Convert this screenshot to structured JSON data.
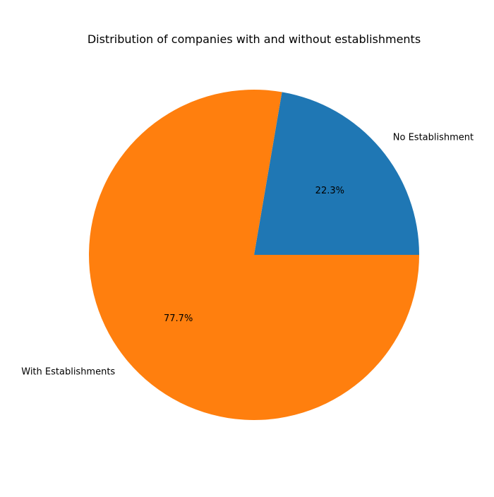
{
  "chart_data": {
    "type": "pie",
    "title": "Distribution of companies with and without establishments",
    "categories": [
      "No Establishment",
      "With Establishments"
    ],
    "values": [
      22.3,
      77.7
    ],
    "percent_labels": [
      "22.3%",
      "77.7%"
    ],
    "colors": [
      "#1f77b4",
      "#ff7f0e"
    ],
    "start_angle_deg": 0,
    "direction": "counterclockwise"
  }
}
